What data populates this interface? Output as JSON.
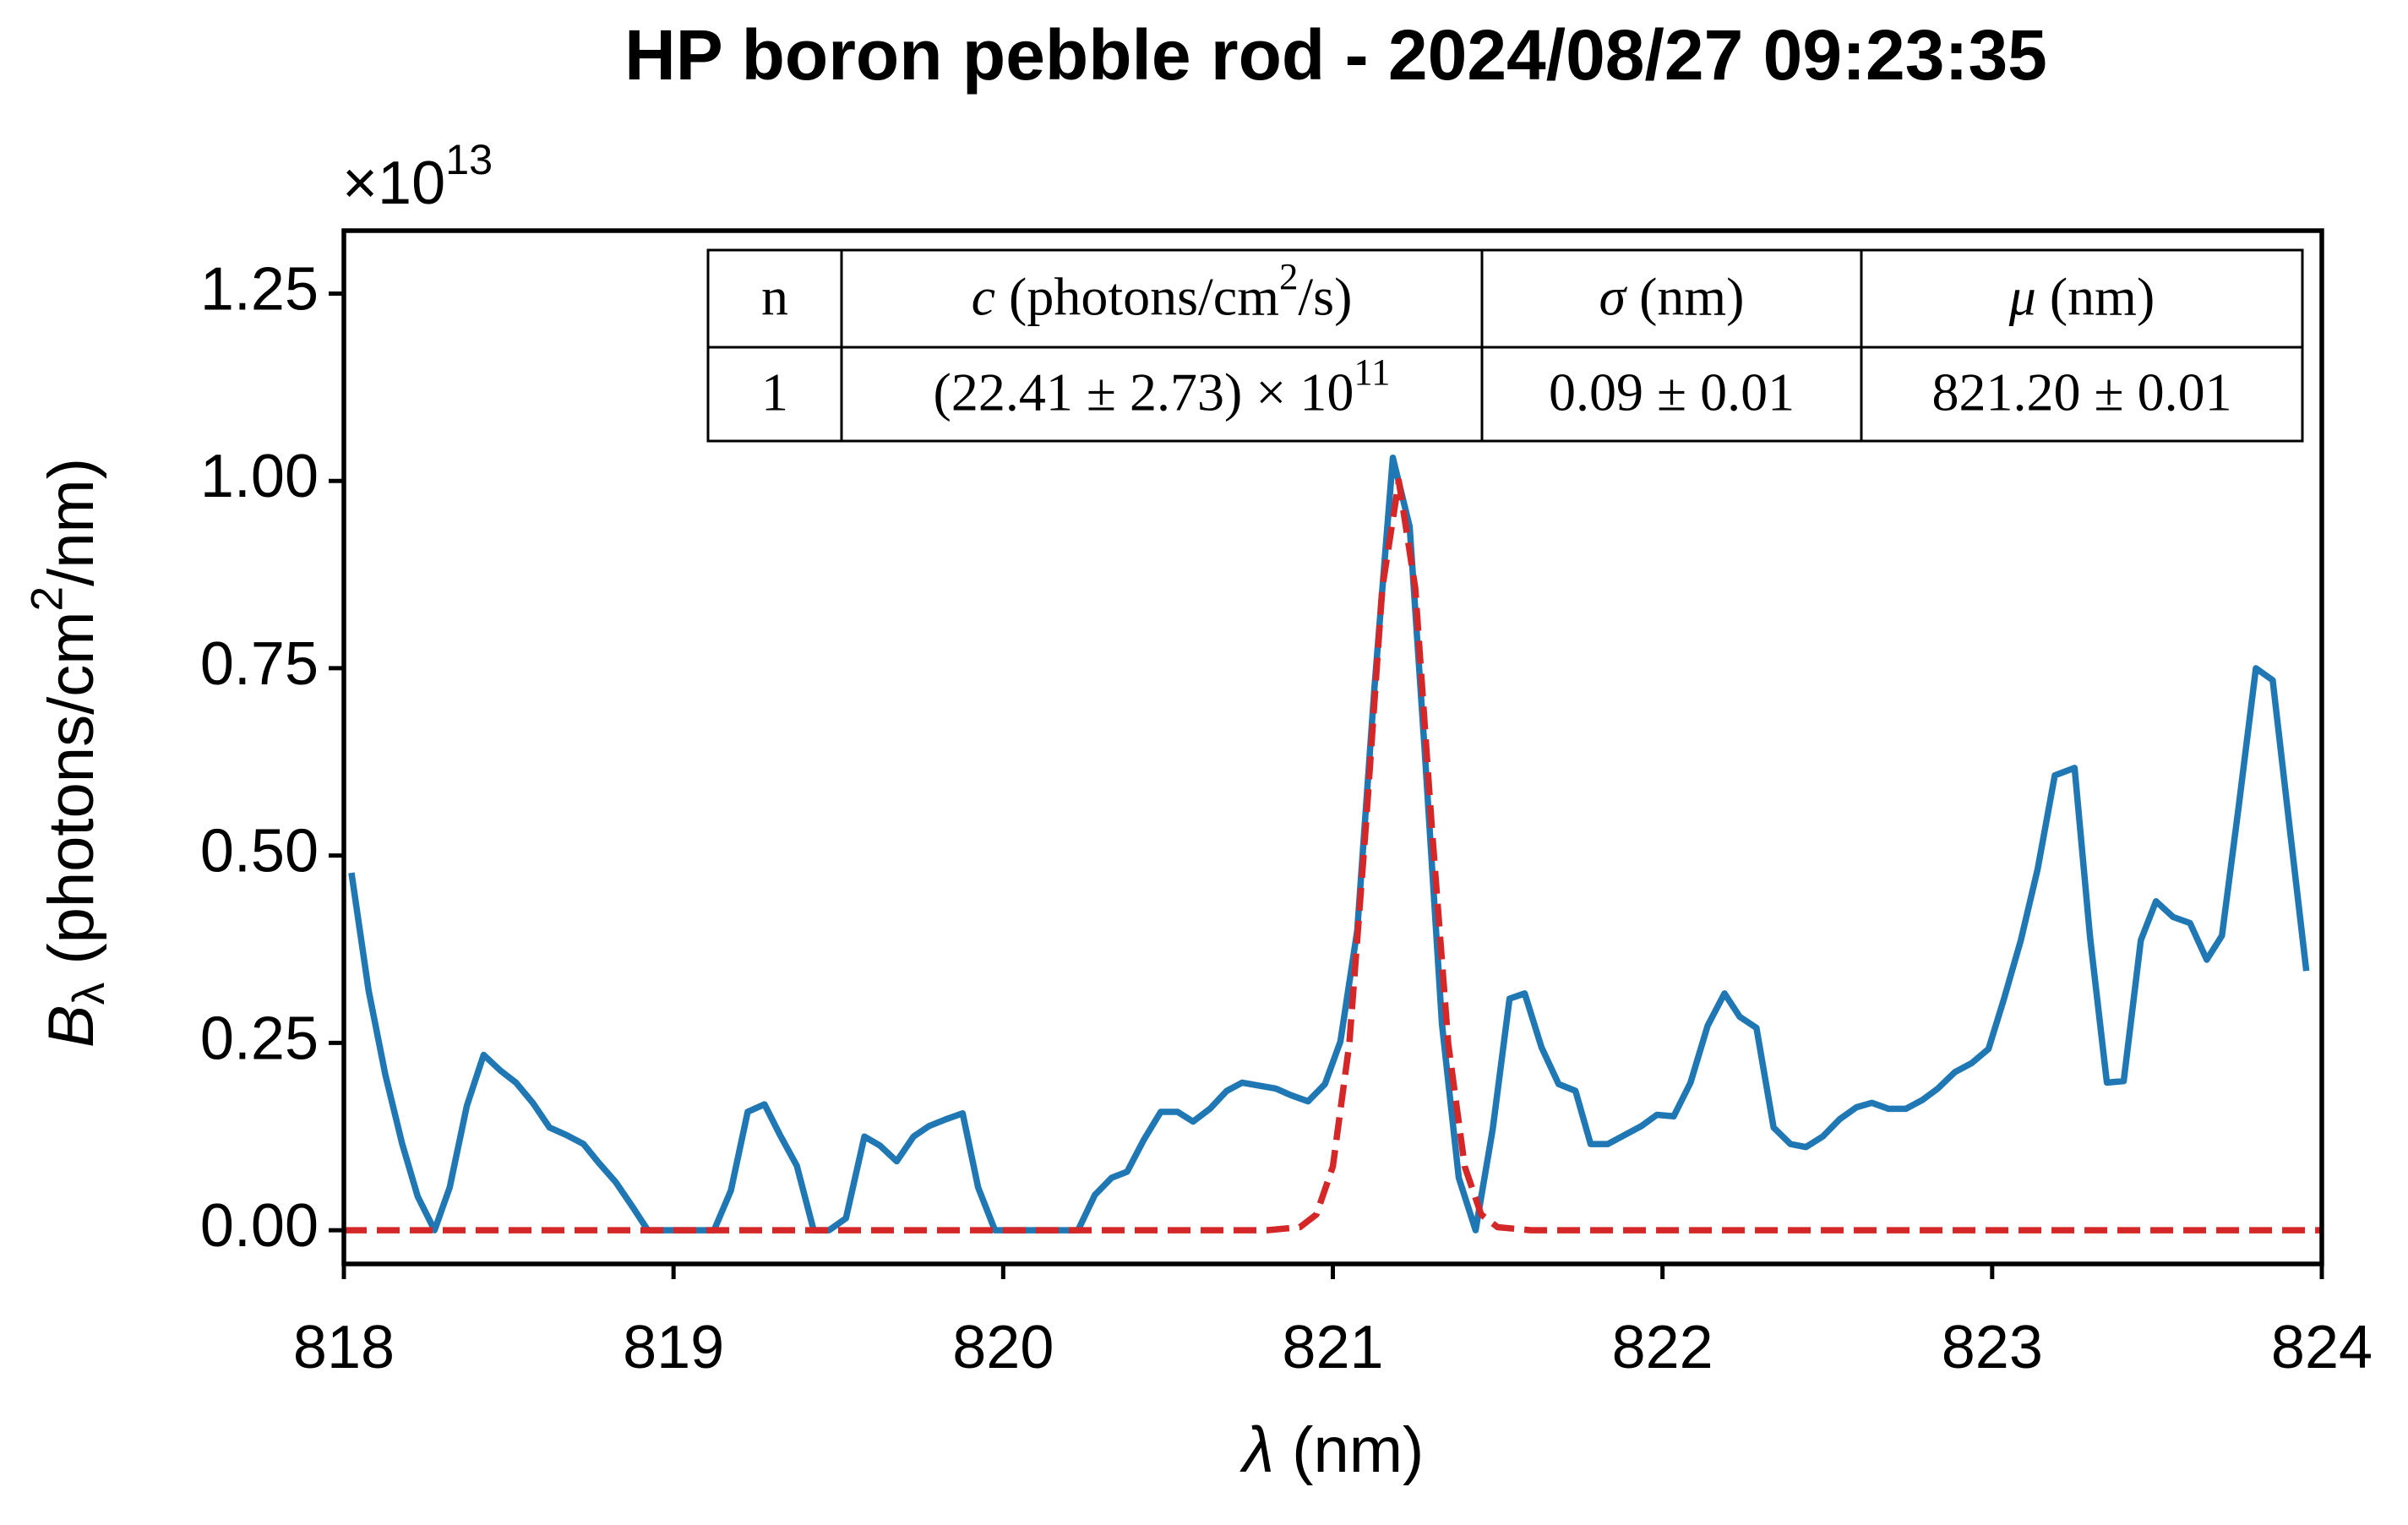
{
  "chart_data": {
    "type": "line",
    "title": "HP boron pebble rod - 2024/08/27 09:23:35",
    "x_label": [
      {
        "text": "λ",
        "style": "italic"
      },
      {
        "text": " (nm)"
      }
    ],
    "y_label": [
      {
        "text": "B",
        "style": "italic"
      },
      {
        "text": "λ",
        "style": "sub"
      },
      {
        "text": " (photons/cm"
      },
      {
        "text": "2",
        "style": "sup"
      },
      {
        "text": "/nm)"
      }
    ],
    "y_offset_label": [
      {
        "text": "×10"
      },
      {
        "text": "13",
        "style": "sup"
      }
    ],
    "xlim": [
      818,
      824
    ],
    "xticks": [
      818,
      819,
      820,
      821,
      822,
      823,
      824
    ],
    "ylim": [
      -0.045,
      1.334
    ],
    "yticks": [
      {
        "value": 0,
        "label": "0.00"
      },
      {
        "value": 0.25,
        "label": "0.25"
      },
      {
        "value": 0.5,
        "label": "0.50"
      },
      {
        "value": 0.75,
        "label": "0.75"
      },
      {
        "value": 1,
        "label": "1.00"
      },
      {
        "value": 1.25,
        "label": "1.25"
      }
    ],
    "grid": false,
    "series": [
      {
        "color": "#1f77b4",
        "dashed": false,
        "x": [
          818.023,
          818.075,
          818.126,
          818.177,
          818.224,
          818.275,
          818.321,
          818.373,
          818.424,
          818.475,
          818.522,
          818.573,
          818.624,
          818.675,
          818.727,
          818.773,
          818.825,
          818.876,
          818.922,
          818.974,
          819.025,
          819.076,
          819.123,
          819.174,
          819.225,
          819.276,
          819.323,
          819.374,
          819.425,
          819.472,
          819.523,
          819.579,
          819.626,
          819.677,
          819.728,
          819.775,
          819.826,
          819.877,
          819.924,
          819.975,
          820.026,
          820.077,
          820.127,
          820.177,
          820.227,
          820.278,
          820.329,
          820.376,
          820.427,
          820.478,
          820.529,
          820.576,
          820.627,
          820.678,
          820.725,
          820.776,
          820.827,
          820.874,
          820.925,
          820.976,
          821.023,
          821.074,
          821.126,
          821.182,
          821.233,
          821.279,
          821.331,
          821.382,
          821.433,
          821.485,
          821.536,
          821.582,
          821.633,
          821.685,
          821.736,
          821.782,
          821.834,
          821.885,
          821.936,
          821.983,
          822.034,
          822.085,
          822.137,
          822.188,
          822.234,
          822.285,
          822.337,
          822.388,
          822.435,
          822.486,
          822.537,
          822.588,
          822.635,
          822.686,
          822.738,
          822.789,
          822.835,
          822.887,
          822.938,
          822.989,
          823.036,
          823.087,
          823.138,
          823.19,
          823.25,
          823.297,
          823.348,
          823.399,
          823.451,
          823.497,
          823.549,
          823.6,
          823.651,
          823.697,
          823.748,
          823.8,
          823.851,
          823.902,
          823.953
        ],
        "values": [
          0.477,
          0.32,
          0.207,
          0.115,
          0.045,
          0,
          0.057,
          0.166,
          0.234,
          0.213,
          0.197,
          0.17,
          0.137,
          0.127,
          0.115,
          0.09,
          0.064,
          0.031,
          0,
          0,
          0,
          0,
          0,
          0.053,
          0.158,
          0.168,
          0.127,
          0.086,
          0,
          0,
          0.016,
          0.125,
          0.113,
          0.092,
          0.125,
          0.139,
          0.148,
          0.156,
          0.057,
          0,
          0,
          0,
          0,
          0,
          0,
          0.047,
          0.07,
          0.078,
          0.121,
          0.158,
          0.158,
          0.145,
          0.162,
          0.186,
          0.197,
          0.193,
          0.189,
          0.18,
          0.172,
          0.195,
          0.252,
          0.4,
          0.723,
          1.031,
          0.939,
          0.637,
          0.275,
          0.07,
          0,
          0.135,
          0.309,
          0.316,
          0.244,
          0.195,
          0.186,
          0.115,
          0.115,
          0.127,
          0.139,
          0.154,
          0.152,
          0.197,
          0.273,
          0.316,
          0.285,
          0.27,
          0.137,
          0.115,
          0.111,
          0.125,
          0.148,
          0.164,
          0.17,
          0.162,
          0.162,
          0.174,
          0.189,
          0.211,
          0.223,
          0.242,
          0.309,
          0.387,
          0.482,
          0.607,
          0.617,
          0.391,
          0.197,
          0.199,
          0.387,
          0.439,
          0.418,
          0.41,
          0.361,
          0.393,
          0.566,
          0.75,
          0.734,
          0.539,
          0.346
        ]
      },
      {
        "color": "#d62728",
        "dashed": true,
        "x": [
          818,
          820.8,
          820.9,
          820.95,
          821,
          821.05,
          821.1,
          821.15,
          821.2,
          821.25,
          821.3,
          821.35,
          821.4,
          821.45,
          821.5,
          821.6,
          824
        ],
        "values": [
          0,
          0,
          0.004,
          0.021,
          0.085,
          0.249,
          0.539,
          0.857,
          1,
          0.857,
          0.539,
          0.249,
          0.085,
          0.021,
          0.004,
          0,
          0
        ]
      }
    ],
    "table": {
      "header": [
        [
          {
            "text": "n"
          }
        ],
        [
          {
            "text": "c",
            "style": "italic"
          },
          {
            "text": " (photons/cm"
          },
          {
            "text": "2",
            "style": "sup"
          },
          {
            "text": "/s)"
          }
        ],
        [
          {
            "text": "σ",
            "style": "italic"
          },
          {
            "text": " (nm)"
          }
        ],
        [
          {
            "text": "μ",
            "style": "italic"
          },
          {
            "text": " (nm)"
          }
        ]
      ],
      "rows": [
        [
          [
            {
              "text": "1"
            }
          ],
          [
            {
              "text": "(22.41 ± 2.73) × 10"
            },
            {
              "text": "11",
              "style": "sup"
            }
          ],
          [
            {
              "text": "0.09 ± 0.01"
            }
          ],
          [
            {
              "text": "821.20 ± 0.01"
            }
          ]
        ]
      ]
    }
  }
}
